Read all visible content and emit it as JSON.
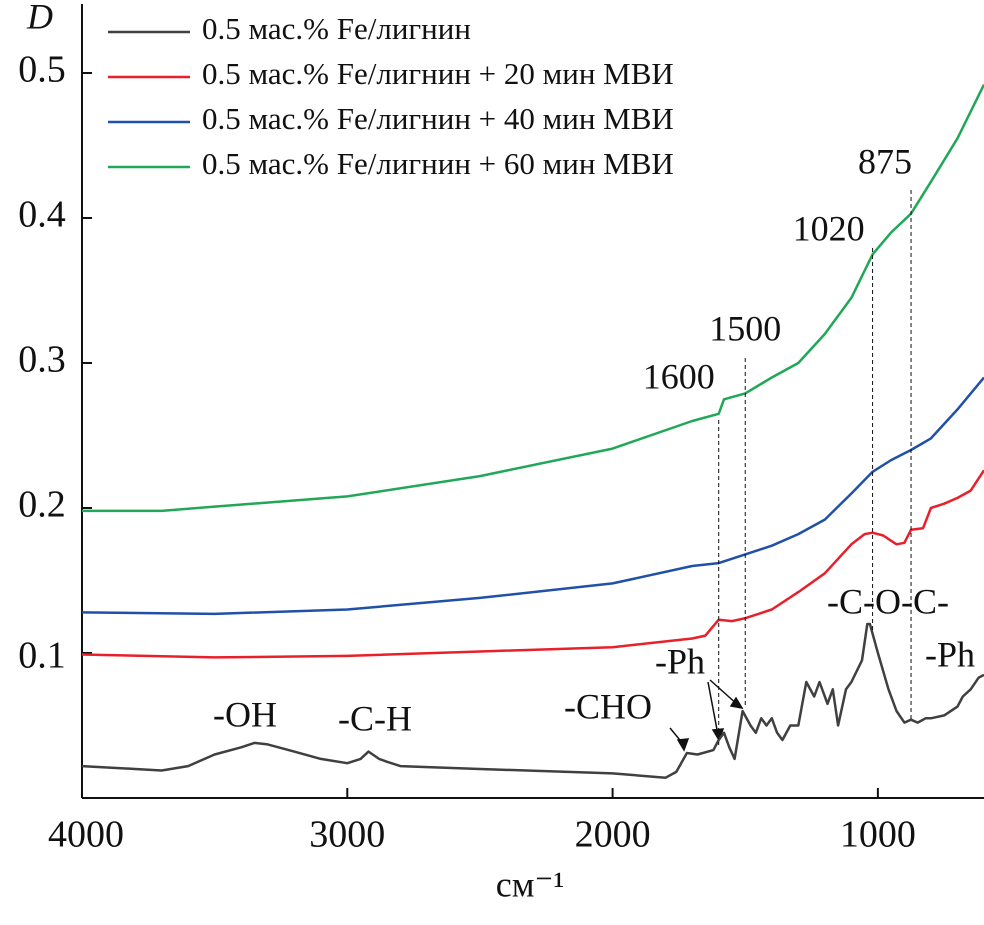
{
  "chart_data": {
    "type": "line",
    "y_label": "D",
    "x_label": "см⁻¹",
    "xlim": [
      4000,
      600
    ],
    "ylim": [
      0,
      0.55
    ],
    "xticks": [
      4000,
      3000,
      2000,
      1000
    ],
    "yticks": [
      0.1,
      0.2,
      0.3,
      0.4,
      0.5
    ],
    "legend": "upper left",
    "marked_wavenumbers": [
      1600,
      1500,
      1020,
      875
    ],
    "group_labels": [
      "-OH",
      "-C-H",
      "-CHO",
      "-Ph",
      "-C-O-C-",
      "-Ph"
    ],
    "series": [
      {
        "name": "0.5 мас.% Fe/лигнин",
        "color": "#404040",
        "x": [
          4000,
          3800,
          3700,
          3600,
          3500,
          3400,
          3350,
          3300,
          3200,
          3100,
          3000,
          2950,
          2920,
          2880,
          2850,
          2800,
          2500,
          2000,
          1800,
          1760,
          1720,
          1680,
          1620,
          1600,
          1580,
          1560,
          1540,
          1510,
          1480,
          1460,
          1440,
          1420,
          1400,
          1380,
          1360,
          1330,
          1300,
          1270,
          1240,
          1220,
          1190,
          1170,
          1150,
          1120,
          1100,
          1060,
          1040,
          1030,
          1000,
          960,
          930,
          900,
          875,
          850,
          820,
          800,
          750,
          700,
          680,
          650,
          620,
          600
        ],
        "values": [
          0.022,
          0.02,
          0.019,
          0.022,
          0.03,
          0.035,
          0.038,
          0.037,
          0.032,
          0.027,
          0.024,
          0.027,
          0.032,
          0.027,
          0.025,
          0.022,
          0.02,
          0.017,
          0.014,
          0.018,
          0.031,
          0.03,
          0.033,
          0.04,
          0.045,
          0.035,
          0.027,
          0.06,
          0.05,
          0.045,
          0.055,
          0.05,
          0.055,
          0.045,
          0.04,
          0.05,
          0.05,
          0.08,
          0.07,
          0.08,
          0.065,
          0.075,
          0.05,
          0.075,
          0.08,
          0.095,
          0.12,
          0.12,
          0.1,
          0.075,
          0.06,
          0.052,
          0.054,
          0.052,
          0.055,
          0.055,
          0.057,
          0.063,
          0.07,
          0.075,
          0.083,
          0.085
        ]
      },
      {
        "name": "0.5 мас.% Fe/лигнин + 20 мин МВИ",
        "color": "#e8202a",
        "x": [
          4000,
          3500,
          3000,
          2500,
          2000,
          1700,
          1650,
          1600,
          1550,
          1500,
          1400,
          1300,
          1200,
          1150,
          1100,
          1050,
          1020,
          980,
          930,
          900,
          875,
          830,
          800,
          750,
          700,
          650,
          600
        ],
        "values": [
          0.099,
          0.097,
          0.098,
          0.101,
          0.104,
          0.11,
          0.112,
          0.123,
          0.122,
          0.124,
          0.13,
          0.142,
          0.155,
          0.165,
          0.175,
          0.182,
          0.183,
          0.181,
          0.175,
          0.176,
          0.185,
          0.186,
          0.2,
          0.203,
          0.207,
          0.212,
          0.226
        ]
      },
      {
        "name": "0.5 мас.% Fe/лигнин + 40 мин МВИ",
        "color": "#2050a8",
        "x": [
          4000,
          3500,
          3000,
          2500,
          2000,
          1700,
          1600,
          1500,
          1400,
          1300,
          1200,
          1100,
          1020,
          950,
          875,
          800,
          700,
          600
        ],
        "values": [
          0.128,
          0.127,
          0.13,
          0.138,
          0.148,
          0.16,
          0.162,
          0.168,
          0.174,
          0.182,
          0.192,
          0.21,
          0.225,
          0.233,
          0.24,
          0.248,
          0.268,
          0.29
        ]
      },
      {
        "name": "0.5 мас.% Fe/лигнин + 60 мин МВИ",
        "color": "#20a858",
        "x": [
          4000,
          3700,
          3500,
          3000,
          2500,
          2000,
          1700,
          1600,
          1580,
          1500,
          1400,
          1300,
          1200,
          1100,
          1020,
          950,
          875,
          800,
          700,
          600
        ],
        "values": [
          0.198,
          0.198,
          0.201,
          0.208,
          0.222,
          0.241,
          0.26,
          0.265,
          0.275,
          0.279,
          0.29,
          0.3,
          0.32,
          0.345,
          0.375,
          0.39,
          0.403,
          0.425,
          0.455,
          0.492
        ]
      }
    ]
  }
}
